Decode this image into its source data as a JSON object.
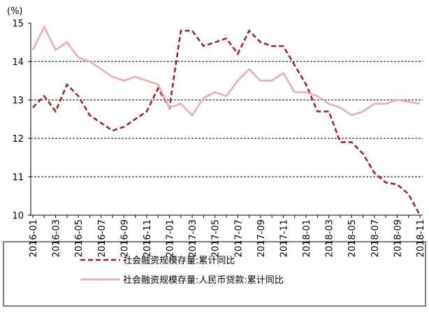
{
  "chart_data": {
    "type": "line",
    "y_unit": "(%)",
    "categories": [
      "2016-01",
      null,
      "2016-03",
      null,
      "2016-05",
      null,
      "2016-07",
      null,
      "2016-09",
      null,
      "2016-11",
      null,
      "2017-01",
      null,
      "2017-03",
      null,
      "2017-05",
      null,
      "2017-07",
      null,
      "2017-09",
      null,
      "2017-11",
      null,
      "2018-01",
      null,
      "2018-03",
      null,
      "2018-05",
      null,
      "2018-07",
      null,
      "2018-09",
      null,
      "2018-11"
    ],
    "series": [
      {
        "name": "社会融资规模存量:累计同比",
        "color": "#a01e2a",
        "dash": true,
        "values": [
          12.8,
          13.1,
          12.7,
          13.4,
          13.1,
          12.6,
          12.4,
          12.2,
          12.3,
          12.5,
          12.7,
          13.3,
          12.8,
          14.8,
          14.8,
          14.4,
          14.5,
          14.6,
          14.2,
          14.8,
          14.5,
          14.4,
          14.4,
          13.9,
          13.4,
          12.7,
          12.7,
          11.9,
          11.9,
          11.6,
          11.1,
          10.85,
          10.8,
          10.55,
          10.0
        ]
      },
      {
        "name": "社会融资规模存量:人民币贷款:累计同比",
        "color": "#f0a8a8",
        "dash": false,
        "values": [
          14.3,
          14.9,
          14.3,
          14.5,
          14.1,
          14.0,
          13.8,
          13.6,
          13.5,
          13.6,
          13.5,
          13.4,
          12.8,
          12.9,
          12.6,
          13.05,
          13.2,
          13.1,
          13.5,
          13.8,
          13.5,
          13.5,
          13.7,
          13.2,
          13.2,
          13.1,
          12.9,
          12.8,
          12.6,
          12.7,
          12.9,
          12.9,
          13.0,
          12.95,
          12.9
        ]
      }
    ],
    "ylim": [
      10,
      15
    ],
    "yticks": [
      10,
      11,
      12,
      13,
      14,
      15
    ],
    "grid": true
  }
}
